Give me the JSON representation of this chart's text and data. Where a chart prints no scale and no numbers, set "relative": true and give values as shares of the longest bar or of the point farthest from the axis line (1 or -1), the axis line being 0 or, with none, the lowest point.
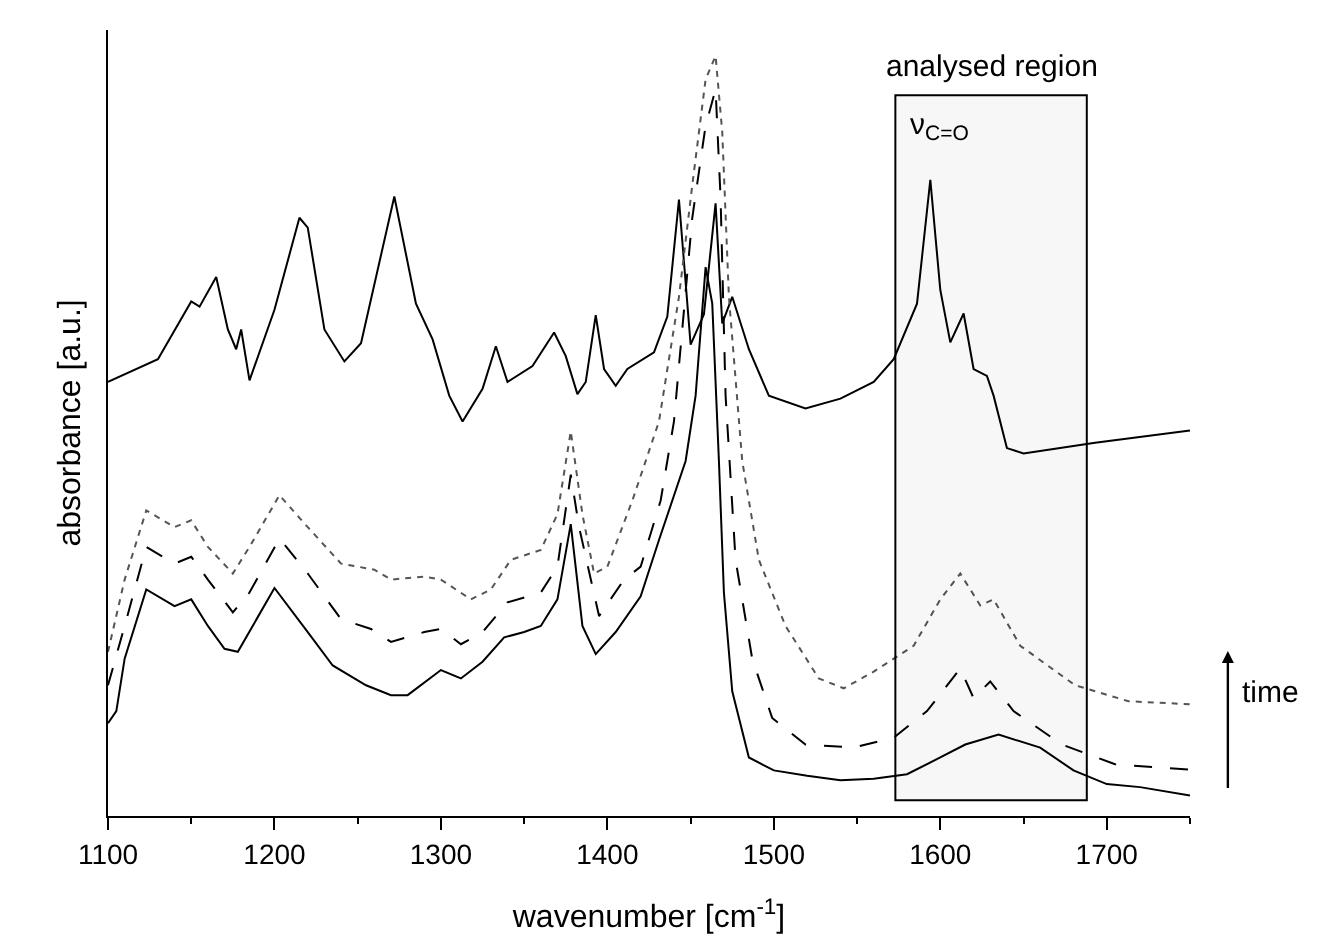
{
  "chart_data": {
    "type": "line",
    "relative": true,
    "xlabel": "wavenumber [cm$^{-1}$]",
    "ylabel": "absorbance [a.u.]",
    "xlim": [
      1100,
      1750
    ],
    "xticks": [
      1100,
      1200,
      1300,
      1400,
      1500,
      1600,
      1700
    ],
    "marker": "none",
    "series": [
      {
        "color": "#000000",
        "line_style": "solid",
        "x": [
          1100,
          1130,
          1150,
          1155,
          1165,
          1172,
          1177,
          1180,
          1185,
          1200,
          1215,
          1220,
          1230,
          1242,
          1252,
          1272,
          1285,
          1295,
          1305,
          1313,
          1325,
          1333,
          1340,
          1355,
          1368,
          1375,
          1382,
          1387,
          1393,
          1398,
          1405,
          1412,
          1428,
          1436,
          1443,
          1450,
          1458,
          1465,
          1469,
          1475,
          1485,
          1497,
          1519,
          1540,
          1560,
          1572,
          1586,
          1594,
          1600,
          1606,
          1614,
          1620,
          1628,
          1632,
          1640,
          1650,
          1693,
          1750
        ],
        "values": [
          0.571,
          0.601,
          0.677,
          0.67,
          0.709,
          0.64,
          0.614,
          0.64,
          0.573,
          0.666,
          0.787,
          0.774,
          0.64,
          0.598,
          0.622,
          0.815,
          0.674,
          0.627,
          0.553,
          0.519,
          0.562,
          0.618,
          0.571,
          0.592,
          0.636,
          0.605,
          0.555,
          0.571,
          0.659,
          0.588,
          0.566,
          0.588,
          0.61,
          0.657,
          0.811,
          0.62,
          0.66,
          0.806,
          0.648,
          0.683,
          0.614,
          0.553,
          0.536,
          0.549,
          0.571,
          0.601,
          0.674,
          0.837,
          0.692,
          0.623,
          0.661,
          0.588,
          0.579,
          0.553,
          0.484,
          0.477,
          0.491,
          0.507
        ]
      },
      {
        "color": "#000000",
        "line_style": "solid",
        "x": [
          1100,
          1105,
          1110,
          1123,
          1140,
          1150,
          1160,
          1170,
          1178,
          1200,
          1220,
          1235,
          1255,
          1270,
          1280,
          1300,
          1312,
          1325,
          1338,
          1350,
          1360,
          1370,
          1378,
          1385,
          1393,
          1405,
          1420,
          1431,
          1447,
          1453,
          1459,
          1463,
          1467,
          1470,
          1475,
          1485,
          1500,
          1520,
          1540,
          1560,
          1580,
          1600,
          1615,
          1635,
          1660,
          1680,
          1700,
          1720,
          1750
        ],
        "values": [
          0.122,
          0.138,
          0.207,
          0.298,
          0.276,
          0.285,
          0.25,
          0.22,
          0.216,
          0.3,
          0.242,
          0.198,
          0.172,
          0.159,
          0.159,
          0.192,
          0.181,
          0.203,
          0.235,
          0.242,
          0.25,
          0.285,
          0.384,
          0.25,
          0.213,
          0.242,
          0.289,
          0.363,
          0.467,
          0.553,
          0.722,
          0.674,
          0.467,
          0.294,
          0.164,
          0.077,
          0.06,
          0.053,
          0.047,
          0.049,
          0.055,
          0.077,
          0.094,
          0.107,
          0.09,
          0.06,
          0.042,
          0.038,
          0.027
        ]
      },
      {
        "color": "#000000",
        "line_style": "dashed",
        "x": [
          1100,
          1110,
          1123,
          1140,
          1150,
          1160,
          1175,
          1185,
          1203,
          1220,
          1240,
          1258,
          1270,
          1290,
          1300,
          1312,
          1325,
          1340,
          1360,
          1370,
          1378,
          1383,
          1395,
          1410,
          1420,
          1432,
          1440,
          1451,
          1459,
          1465,
          1468,
          1471,
          1477,
          1487,
          1499,
          1519,
          1548,
          1572,
          1592,
          1612,
          1620,
          1630,
          1644,
          1673,
          1705,
          1750
        ],
        "values": [
          0.172,
          0.25,
          0.354,
          0.332,
          0.341,
          0.311,
          0.268,
          0.294,
          0.365,
          0.319,
          0.259,
          0.246,
          0.229,
          0.242,
          0.246,
          0.226,
          0.242,
          0.281,
          0.294,
          0.328,
          0.449,
          0.38,
          0.263,
          0.311,
          0.328,
          0.415,
          0.519,
          0.787,
          0.908,
          0.956,
          0.813,
          0.553,
          0.337,
          0.207,
          0.129,
          0.094,
          0.09,
          0.103,
          0.138,
          0.194,
          0.155,
          0.177,
          0.138,
          0.094,
          0.068,
          0.061
        ]
      },
      {
        "color": "#555555",
        "line_style": "dotted",
        "x": [
          1100,
          1110,
          1123,
          1140,
          1150,
          1160,
          1175,
          1185,
          1203,
          1220,
          1240,
          1260,
          1270,
          1290,
          1300,
          1318,
          1330,
          1342,
          1360,
          1370,
          1378,
          1385,
          1392,
          1400,
          1415,
          1431,
          1443,
          1451,
          1459,
          1465,
          1469,
          1473,
          1481,
          1491,
          1507,
          1527,
          1542,
          1560,
          1584,
          1600,
          1612,
          1624,
          1632,
          1648,
          1681,
          1713,
          1750
        ],
        "values": [
          0.216,
          0.311,
          0.402,
          0.38,
          0.389,
          0.354,
          0.319,
          0.354,
          0.422,
          0.38,
          0.332,
          0.324,
          0.311,
          0.315,
          0.311,
          0.285,
          0.298,
          0.337,
          0.35,
          0.397,
          0.506,
          0.397,
          0.319,
          0.328,
          0.415,
          0.519,
          0.683,
          0.83,
          0.969,
          1.0,
          0.9,
          0.683,
          0.467,
          0.337,
          0.25,
          0.181,
          0.168,
          0.19,
          0.224,
          0.285,
          0.319,
          0.277,
          0.285,
          0.224,
          0.172,
          0.151,
          0.147
        ]
      }
    ],
    "bands": [
      {
        "axis": "x",
        "from": 1573,
        "to": 1688,
        "label": "analysed region"
      }
    ],
    "annotations": [
      "ν$_{C=O}$",
      "time"
    ]
  }
}
